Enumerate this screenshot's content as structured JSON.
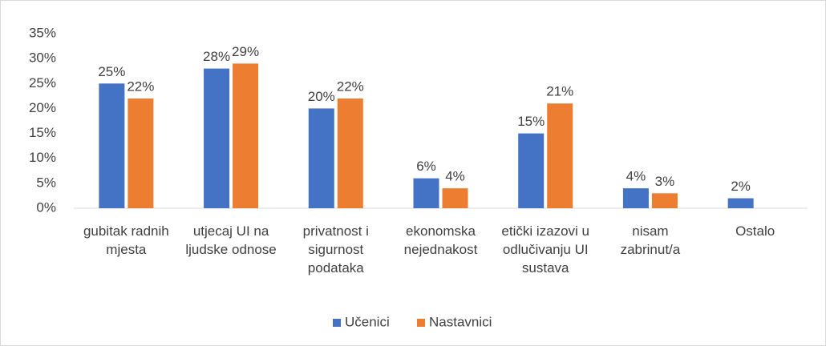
{
  "chart_data": {
    "type": "bar",
    "categories": [
      "gubitak radnih mjesta",
      "utjecaj UI na ljudske odnose",
      "privatnost i sigurnost podataka",
      "ekonomska nejednakost",
      "etički izazovi u odlučivanju UI sustava",
      "nisam zabrinut/a",
      "Ostalo"
    ],
    "series": [
      {
        "name": "Učenici",
        "color": "#4472c4",
        "values": [
          25,
          28,
          20,
          6,
          15,
          4,
          2
        ],
        "value_labels": [
          "25%",
          "28%",
          "20%",
          "6%",
          "15%",
          "4%",
          "2%"
        ]
      },
      {
        "name": "Nastavnici",
        "color": "#ed7d31",
        "values": [
          22,
          29,
          22,
          4,
          21,
          3,
          null
        ],
        "value_labels": [
          "22%",
          "29%",
          "22%",
          "4%",
          "21%",
          "3%",
          null
        ]
      }
    ],
    "ylim": [
      0,
      35
    ],
    "yticks": [
      {
        "value": 0,
        "label": "0%"
      },
      {
        "value": 5,
        "label": "5%"
      },
      {
        "value": 10,
        "label": "10%"
      },
      {
        "value": 15,
        "label": "15%"
      },
      {
        "value": 20,
        "label": "20%"
      },
      {
        "value": 25,
        "label": "25%"
      },
      {
        "value": 30,
        "label": "30%"
      },
      {
        "value": 35,
        "label": "35%"
      }
    ],
    "legend": "bottom"
  }
}
